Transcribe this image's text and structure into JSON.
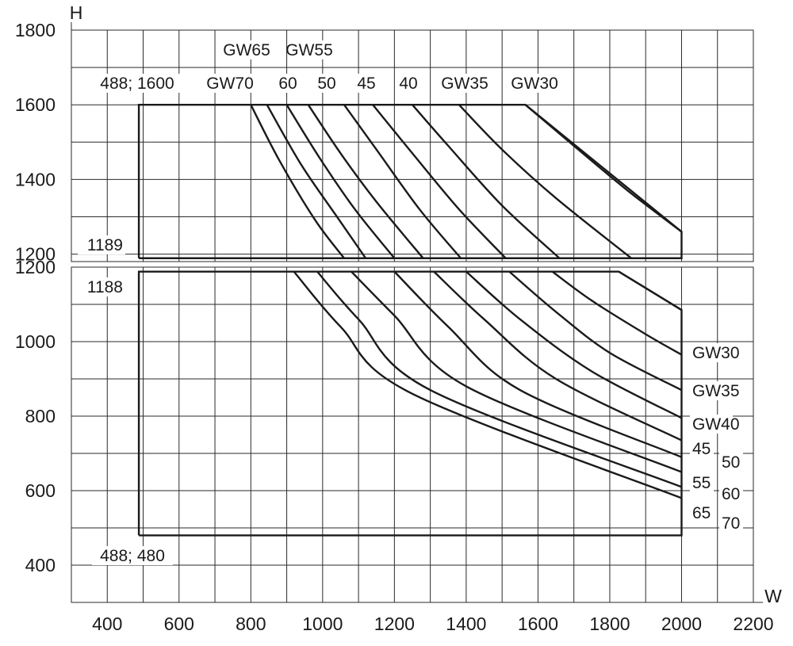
{
  "chart_data": [
    {
      "panel": "upper",
      "type": "line",
      "xlabel": "W",
      "ylabel": "H",
      "xlim": [
        300,
        2200
      ],
      "ylim": [
        1180,
        1800
      ],
      "xticks": [
        400,
        600,
        800,
        1000,
        1200,
        1400,
        1600,
        1800,
        2000,
        2200
      ],
      "yticks": [
        1200,
        1400,
        1600,
        1800
      ],
      "grid": true,
      "boundary": [
        [
          488,
          1189
        ],
        [
          488,
          1600
        ],
        [
          1565,
          1600
        ],
        [
          2000,
          1260
        ],
        [
          2000,
          1189
        ],
        [
          488,
          1189
        ]
      ],
      "series": [
        {
          "name": "GW30",
          "x": [
            1565,
            1700,
            1850,
            2000
          ],
          "y": [
            1600,
            1490,
            1370,
            1260
          ]
        },
        {
          "name": "GW35",
          "x": [
            1380,
            1500,
            1650,
            1860
          ],
          "y": [
            1600,
            1480,
            1350,
            1189
          ]
        },
        {
          "name": "40",
          "x": [
            1250,
            1350,
            1500,
            1660
          ],
          "y": [
            1600,
            1490,
            1330,
            1189
          ]
        },
        {
          "name": "45",
          "x": [
            1140,
            1250,
            1380,
            1510
          ],
          "y": [
            1600,
            1470,
            1320,
            1189
          ]
        },
        {
          "name": "50",
          "x": [
            1060,
            1150,
            1270,
            1385
          ],
          "y": [
            1600,
            1480,
            1320,
            1189
          ]
        },
        {
          "name": "60",
          "x": [
            960,
            1050,
            1150,
            1280
          ],
          "y": [
            1600,
            1470,
            1340,
            1189
          ]
        },
        {
          "name": "GW55",
          "x": [
            900,
            990,
            1090,
            1200
          ],
          "y": [
            1600,
            1460,
            1320,
            1189
          ]
        },
        {
          "name": "GW65",
          "x": [
            845,
            940,
            1040,
            1120
          ],
          "y": [
            1600,
            1440,
            1300,
            1189
          ]
        },
        {
          "name": "GW70",
          "x": [
            800,
            880,
            980,
            1060
          ],
          "y": [
            1600,
            1450,
            1290,
            1189
          ]
        }
      ],
      "annotations": [
        {
          "text": "488; 1600",
          "x": 488,
          "y": 1600
        },
        {
          "text": "1189",
          "x": 488,
          "y": 1189
        }
      ],
      "top_labels": {
        "row1": [
          "GW65",
          "GW55"
        ],
        "row2": [
          "GW70",
          "60",
          "50",
          "45",
          "40",
          "GW35",
          "GW30"
        ]
      }
    },
    {
      "panel": "lower",
      "type": "line",
      "xlabel": "W",
      "ylabel": "",
      "xlim": [
        300,
        2200
      ],
      "ylim": [
        300,
        1200
      ],
      "xticks": [
        400,
        600,
        800,
        1000,
        1200,
        1400,
        1600,
        1800,
        2000,
        2200
      ],
      "yticks": [
        400,
        600,
        800,
        1000,
        1200
      ],
      "grid": true,
      "boundary": [
        [
          488,
          480
        ],
        [
          488,
          1188
        ],
        [
          1825,
          1188
        ],
        [
          2000,
          1085
        ],
        [
          2000,
          480
        ],
        [
          488,
          480
        ]
      ],
      "series": [
        {
          "name": "GW30",
          "x": [
            1825,
            2000
          ],
          "y": [
            1188,
            1085
          ]
        },
        {
          "name": "GW35",
          "x": [
            1640,
            1750,
            1900,
            2000
          ],
          "y": [
            1188,
            1110,
            1020,
            965
          ]
        },
        {
          "name": "GW40",
          "x": [
            1520,
            1650,
            1800,
            2000
          ],
          "y": [
            1188,
            1080,
            970,
            870
          ]
        },
        {
          "name": "45",
          "x": [
            1400,
            1550,
            1750,
            2000
          ],
          "y": [
            1188,
            1060,
            920,
            795
          ]
        },
        {
          "name": "50",
          "x": [
            1310,
            1450,
            1650,
            2000
          ],
          "y": [
            1188,
            1060,
            900,
            735
          ]
        },
        {
          "name": "55",
          "x": [
            1200,
            1350,
            1550,
            2000
          ],
          "y": [
            1188,
            1040,
            870,
            690
          ]
        },
        {
          "name": "60",
          "x": [
            1080,
            1200,
            1400,
            2000
          ],
          "y": [
            1188,
            1070,
            880,
            650
          ]
        },
        {
          "name": "65",
          "x": [
            985,
            1100,
            1300,
            2000
          ],
          "y": [
            1188,
            1060,
            870,
            610
          ]
        },
        {
          "name": "70",
          "x": [
            920,
            1050,
            1250,
            2000
          ],
          "y": [
            1188,
            1040,
            860,
            580
          ]
        }
      ],
      "annotations": [
        {
          "text": "1188",
          "x": 488,
          "y": 1188
        },
        {
          "text": "488; 480",
          "x": 488,
          "y": 480
        }
      ],
      "right_labels": [
        "GW30",
        "GW35",
        "GW40",
        "45",
        "50",
        "55",
        "60",
        "65",
        "70"
      ]
    }
  ],
  "axes": {
    "x_name": "W",
    "y_name": "H",
    "x_ticks": [
      "400",
      "600",
      "800",
      "1000",
      "1200",
      "1400",
      "1600",
      "1800",
      "2000",
      "2200"
    ],
    "y_ticks_upper": [
      "1200",
      "1400",
      "1600",
      "1800"
    ],
    "y_ticks_lower": [
      "400",
      "600",
      "800",
      "1000",
      "1200"
    ]
  }
}
